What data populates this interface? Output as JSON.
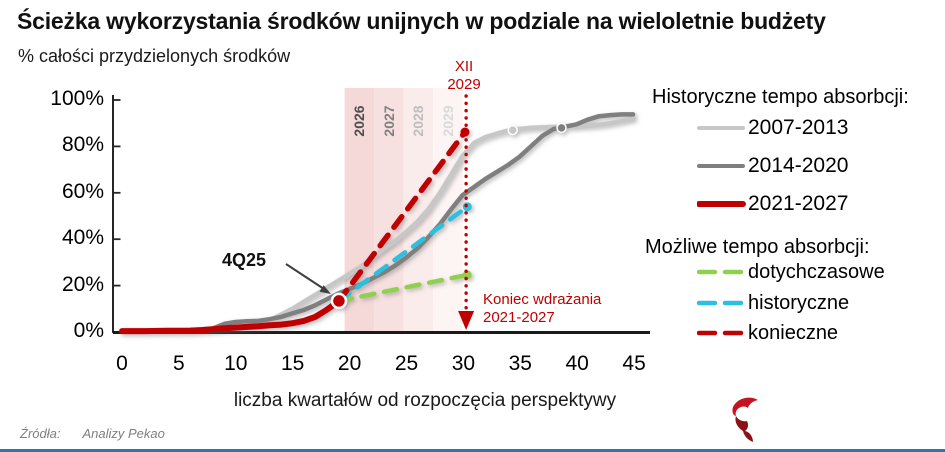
{
  "page": {
    "title": "Ścieżka wykorzystania środków unijnych w podziale na wieloletnie budżety",
    "subtitle": "% całości przydzielonych środków",
    "source_label": "Źródła:",
    "source_value": "Analizy Pekao",
    "accent_blue": "#2e74b5",
    "brand_red": "#c00000"
  },
  "chart_data": {
    "type": "line",
    "title": "Ścieżka wykorzystania środków unijnych w podziale na wieloletnie budżety",
    "xlabel": "liczba kwartałów od rozpoczęcia perspektywy",
    "ylabel": "% całości przydzielonych środków",
    "xlim": [
      0,
      45
    ],
    "ylim": [
      0,
      100
    ],
    "grid": false,
    "x_ticks": [
      "0",
      "5",
      "10",
      "15",
      "20",
      "25",
      "30",
      "35",
      "40",
      "45"
    ],
    "y_ticks": [
      "100%",
      "80%",
      "60%",
      "40%",
      "20%",
      "0%"
    ],
    "series": [
      {
        "name": "2007-2013",
        "color": "#c7c7c7",
        "weight": 4.5,
        "points": [
          [
            0,
            0.3
          ],
          [
            2,
            0.3
          ],
          [
            4,
            0.5
          ],
          [
            6,
            0.8
          ],
          [
            8,
            1.2
          ],
          [
            10,
            2
          ],
          [
            11,
            2.6
          ],
          [
            12,
            3.5
          ],
          [
            13,
            5
          ],
          [
            14,
            7.5
          ],
          [
            15,
            10
          ],
          [
            16,
            13
          ],
          [
            17,
            16
          ],
          [
            18,
            19
          ],
          [
            19,
            22
          ],
          [
            20,
            25
          ],
          [
            21,
            28
          ],
          [
            22,
            32
          ],
          [
            23,
            35.5
          ],
          [
            24,
            39
          ],
          [
            25,
            43
          ],
          [
            26,
            47.5
          ],
          [
            27,
            53
          ],
          [
            28,
            60
          ],
          [
            29,
            68
          ],
          [
            30,
            76
          ],
          [
            31,
            81.5
          ],
          [
            32,
            84
          ],
          [
            33,
            85.5
          ],
          [
            34,
            86.8
          ],
          [
            35,
            87.5
          ],
          [
            36,
            88
          ],
          [
            37,
            88.2
          ],
          [
            38,
            88.4
          ],
          [
            39,
            88.5
          ],
          [
            40,
            88.7
          ],
          [
            41,
            89
          ],
          [
            42,
            89.3
          ],
          [
            43,
            90
          ],
          [
            44,
            91
          ],
          [
            45,
            92
          ]
        ],
        "marker": {
          "q": 34.4,
          "pct": 87,
          "big": false
        }
      },
      {
        "name": "2014-2020",
        "color": "#7f7f7f",
        "weight": 4.5,
        "points": [
          [
            0,
            0.3
          ],
          [
            2,
            0.3
          ],
          [
            4,
            0.5
          ],
          [
            6,
            0.8
          ],
          [
            8,
            1.5
          ],
          [
            9,
            3.5
          ],
          [
            10,
            4.3
          ],
          [
            11,
            4.6
          ],
          [
            12,
            4.8
          ],
          [
            13,
            5.5
          ],
          [
            14,
            6.5
          ],
          [
            15,
            8
          ],
          [
            16,
            9.5
          ],
          [
            17,
            11.5
          ],
          [
            18,
            14
          ],
          [
            19,
            16.5
          ],
          [
            20,
            18.5
          ],
          [
            21,
            20.5
          ],
          [
            22,
            23
          ],
          [
            23,
            25.5
          ],
          [
            24,
            28.5
          ],
          [
            25,
            32
          ],
          [
            26,
            36
          ],
          [
            27,
            41
          ],
          [
            28,
            46.5
          ],
          [
            29,
            53
          ],
          [
            30,
            59
          ],
          [
            31,
            62.5
          ],
          [
            32,
            66
          ],
          [
            33,
            69
          ],
          [
            34,
            72
          ],
          [
            35,
            75.5
          ],
          [
            36,
            80
          ],
          [
            37,
            84.5
          ],
          [
            38,
            87.5
          ],
          [
            39,
            88.5
          ],
          [
            40,
            89.5
          ],
          [
            41,
            91.5
          ],
          [
            42,
            93
          ],
          [
            43,
            93.5
          ],
          [
            44,
            93.8
          ],
          [
            45,
            93.8
          ]
        ],
        "marker": {
          "q": 38.7,
          "pct": 88,
          "big": false
        }
      },
      {
        "name": "2021-2027",
        "color": "#c00000",
        "weight": 6,
        "points": [
          [
            0,
            0.4
          ],
          [
            2,
            0.4
          ],
          [
            4,
            0.5
          ],
          [
            6,
            0.6
          ],
          [
            7,
            0.8
          ],
          [
            8,
            1.2
          ],
          [
            9,
            1.6
          ],
          [
            10,
            1.9
          ],
          [
            11,
            2.2
          ],
          [
            12,
            2.5
          ],
          [
            13,
            2.9
          ],
          [
            14,
            3.2
          ],
          [
            15,
            3.8
          ],
          [
            16,
            4.8
          ],
          [
            17,
            6.5
          ],
          [
            18,
            9.5
          ],
          [
            19.1,
            13.4
          ]
        ],
        "marker": {
          "q": 19.1,
          "pct": 13.4,
          "big": true
        }
      }
    ],
    "projections": [
      {
        "name": "dotychczasowe",
        "color": "#8fd14f",
        "weight": 4.5,
        "from": [
          19.1,
          13.4
        ],
        "to": [
          30.4,
          24.6
        ]
      },
      {
        "name": "historyczne",
        "color": "#2cc0e0",
        "weight": 4.5,
        "from": [
          19.1,
          13.4
        ],
        "to": [
          30.4,
          54
        ]
      },
      {
        "name": "konieczne",
        "color": "#c00000",
        "weight": 5.5,
        "from": [
          19.1,
          13.4
        ],
        "to": [
          30.2,
          86.2
        ]
      }
    ],
    "bands": {
      "start_q": 19.6,
      "end_q": 30.0,
      "labels": [
        "2026",
        "2027",
        "2028",
        "2029"
      ],
      "fills": [
        "#f5d9d9",
        "#f7e0e0",
        "#fbecec",
        "#fdf4f4"
      ],
      "label_colors": [
        "#4d4d4d",
        "#7f7f7f",
        "#bdbdbd",
        "#d9d9d9"
      ]
    },
    "deadline": {
      "q": 30.3,
      "color": "#c00000"
    },
    "annotations": {
      "point_label": "4Q25",
      "deadline_top_1": "XII",
      "deadline_top_2": "2029",
      "deadline_bottom_1": "Koniec wdrażania",
      "deadline_bottom_2": "2021-2027"
    }
  },
  "legend": {
    "historical": {
      "heading": "Historyczne tempo absorbcji:",
      "items": [
        {
          "label": "2007-2013",
          "color": "#c7c7c7",
          "style": "solid",
          "weight": 4
        },
        {
          "label": "2014-2020",
          "color": "#7f7f7f",
          "style": "solid",
          "weight": 4
        },
        {
          "label": "2021-2027",
          "color": "#c00000",
          "style": "solid",
          "weight": 6
        }
      ]
    },
    "possible": {
      "heading": "Możliwe tempo absorbcji:",
      "items": [
        {
          "label": "dotychczasowe",
          "color": "#8fd14f",
          "style": "dashed",
          "weight": 4.5
        },
        {
          "label": "historyczne",
          "color": "#2cc0e0",
          "style": "dashed",
          "weight": 4.5
        },
        {
          "label": "konieczne",
          "color": "#c00000",
          "style": "dashed",
          "weight": 4.5
        }
      ]
    }
  }
}
